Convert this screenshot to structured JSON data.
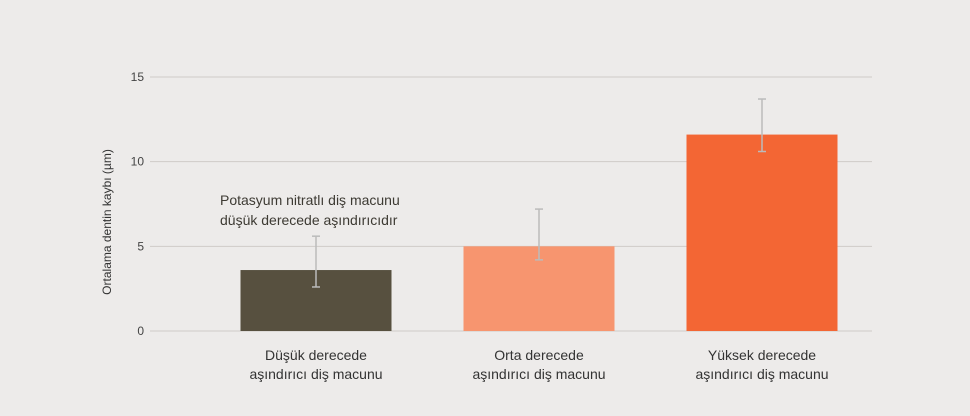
{
  "chart_data": {
    "type": "bar",
    "ylabel": "Ortalama dentin kaybı (µm)",
    "ylim": [
      0,
      15
    ],
    "yticks": [
      0,
      5,
      10,
      15
    ],
    "grid": true,
    "categories": [
      [
        "Düşük derecede",
        "aşındırıcı diş macunu"
      ],
      [
        "Orta derecede",
        "aşındırıcı diş macunu"
      ],
      [
        "Yüksek derecede",
        "aşındırıcı diş macunu"
      ]
    ],
    "values": [
      3.6,
      5.0,
      11.6
    ],
    "errors": [
      [
        2.6,
        5.6
      ],
      [
        4.2,
        7.2
      ],
      [
        10.6,
        13.7
      ]
    ],
    "colors": [
      "#57503f",
      "#f7956f",
      "#f36634"
    ],
    "annotation": [
      "Potasyum nitratlı diş macunu",
      "düşük derecede aşındırıcıdır"
    ]
  },
  "colors": {
    "background": "#edebea",
    "grid": "#cfcbc8",
    "error_bar": "#bbbbbb"
  }
}
